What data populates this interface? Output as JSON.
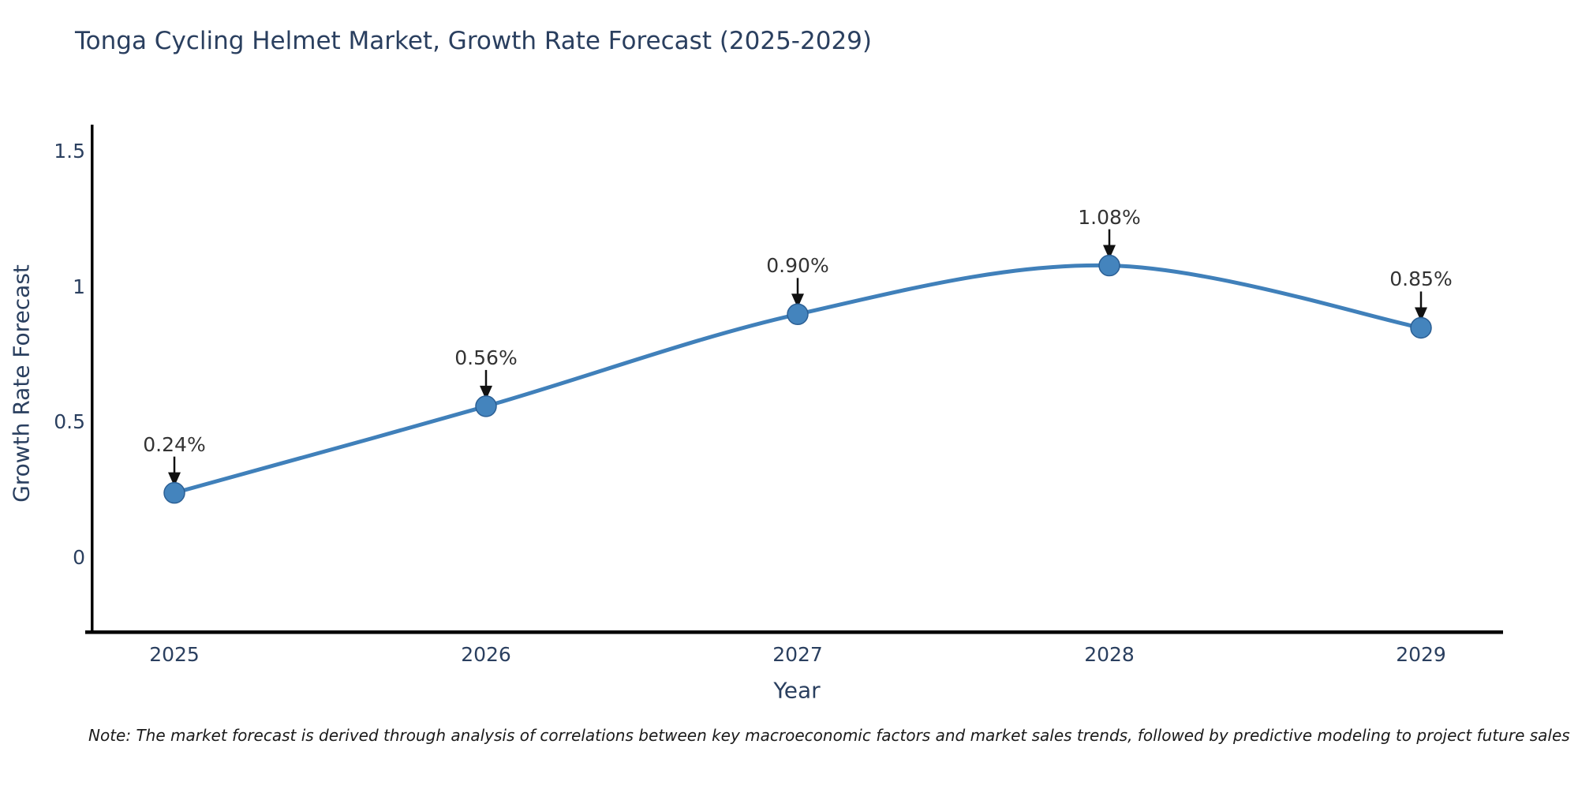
{
  "header": {
    "title": "Tonga Cycling Helmet Market, Growth Rate Forecast (2025-2029)"
  },
  "chart_data": {
    "type": "line",
    "title": "Tonga Cycling Helmet Market, Growth Rate Forecast (2025-2029)",
    "x": [
      "2025",
      "2026",
      "2027",
      "2028",
      "2029"
    ],
    "series": [
      {
        "name": "Growth Rate Forecast",
        "values": [
          0.24,
          0.56,
          0.9,
          1.08,
          0.85
        ]
      }
    ],
    "point_labels": [
      "0.24%",
      "0.56%",
      "0.90%",
      "1.08%",
      "0.85%"
    ],
    "xlabel": "Year",
    "ylabel": "Growth Rate Forecast",
    "y_ticks": [
      "1.5",
      "1",
      "0.5",
      "0"
    ],
    "y_tick_values": [
      1.5,
      1.0,
      0.5,
      0.0
    ],
    "ylim": [
      -0.28,
      1.6
    ],
    "grid": false,
    "legend": false,
    "line_shape": "spline",
    "colors": {
      "line": "#4080ba",
      "marker_fill": "#4484bd",
      "marker_edge": "#2b5f94",
      "arrow": "#111111",
      "axis": "#000000",
      "tick_label": "#2a3f5f",
      "annotation_text": "#333333"
    }
  },
  "note": {
    "text": "Note: The market forecast is derived through analysis of correlations between key macroeconomic factors and market sales trends, followed by predictive modeling to project future sales"
  }
}
